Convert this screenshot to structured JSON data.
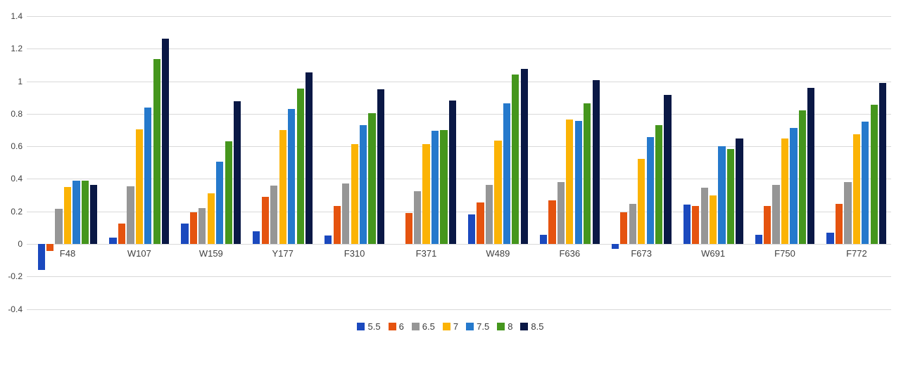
{
  "chart_data": {
    "type": "bar",
    "title": "",
    "xlabel": "",
    "ylabel": "",
    "ylim": [
      -0.4,
      1.4
    ],
    "grid": true,
    "legend_position": "bottom-center",
    "gridline_color": "#d9d9d9",
    "axis_text_color": "#404040",
    "background_color": "#ffffff",
    "ytick_values": [
      1.4,
      1.2,
      1.0,
      0.8,
      0.6,
      0.4,
      0.2,
      0.0,
      -0.2,
      -0.4
    ],
    "ytick_labels": [
      "1.4",
      "1.2",
      "1",
      "0.8",
      "0.6",
      "0.4",
      "0.2",
      "0",
      "-0.2",
      "-0.4"
    ],
    "categories": [
      "F48",
      "W107",
      "W159",
      "Y177",
      "F310",
      "F371",
      "W489",
      "F636",
      "F673",
      "W691",
      "F750",
      "F772"
    ],
    "series": [
      {
        "name": "5.5",
        "color": "#1b49be",
        "values": [
          -0.16,
          0.04,
          0.125,
          0.08,
          0.05,
          0.0,
          0.18,
          0.055,
          -0.03,
          0.24,
          0.055,
          0.07
        ]
      },
      {
        "name": "6",
        "color": "#e5530f",
        "values": [
          -0.045,
          0.125,
          0.195,
          0.29,
          0.235,
          0.19,
          0.255,
          0.27,
          0.195,
          0.235,
          0.235,
          0.245
        ]
      },
      {
        "name": "6.5",
        "color": "#969696",
        "values": [
          0.215,
          0.355,
          0.22,
          0.36,
          0.37,
          0.325,
          0.365,
          0.38,
          0.245,
          0.345,
          0.365,
          0.38
        ]
      },
      {
        "name": "7",
        "color": "#fbb305",
        "values": [
          0.35,
          0.705,
          0.31,
          0.7,
          0.615,
          0.615,
          0.635,
          0.765,
          0.525,
          0.3,
          0.65,
          0.675
        ]
      },
      {
        "name": "7.5",
        "color": "#2579cc",
        "values": [
          0.39,
          0.84,
          0.505,
          0.83,
          0.73,
          0.695,
          0.865,
          0.755,
          0.655,
          0.6,
          0.715,
          0.75
        ]
      },
      {
        "name": "8",
        "color": "#45961d",
        "values": [
          0.39,
          1.135,
          0.63,
          0.955,
          0.805,
          0.7,
          1.04,
          0.865,
          0.73,
          0.585,
          0.82,
          0.855
        ]
      },
      {
        "name": "8.5",
        "color": "#0a1845",
        "values": [
          0.365,
          1.26,
          0.875,
          1.055,
          0.95,
          0.88,
          1.075,
          1.005,
          0.915,
          0.65,
          0.96,
          0.99
        ]
      }
    ]
  }
}
